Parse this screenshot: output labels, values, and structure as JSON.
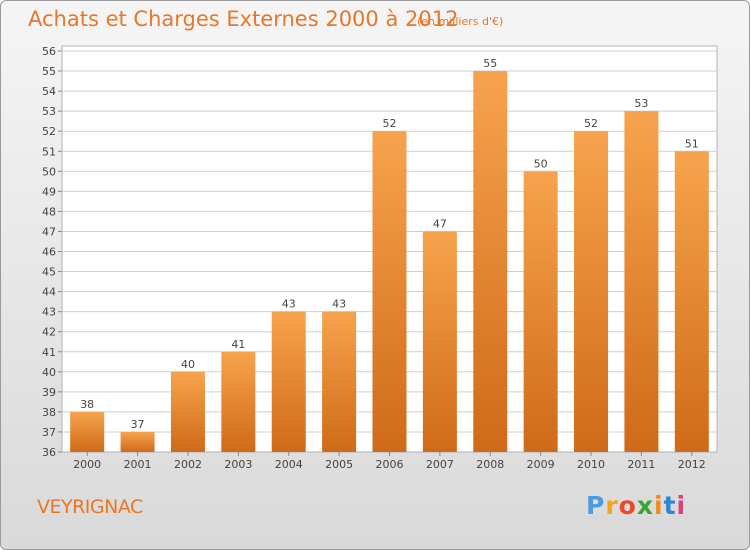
{
  "title": "Achats et Charges Externes 2000 à 2012",
  "subtitle": "(en milliers d'€)",
  "location": "VEYRIGNAC",
  "brand": [
    "P",
    "r",
    "o",
    "x",
    "i",
    "t",
    "i"
  ],
  "colors": {
    "bar_top": "#f7a34d",
    "bar_bottom": "#cf6a18",
    "title": "#e8772a",
    "grid": "#cfcfcf"
  },
  "chart_data": {
    "type": "bar",
    "categories": [
      "2000",
      "2001",
      "2002",
      "2003",
      "2004",
      "2005",
      "2006",
      "2007",
      "2008",
      "2009",
      "2010",
      "2011",
      "2012"
    ],
    "values": [
      38,
      37,
      40,
      41,
      43,
      43,
      52,
      47,
      55,
      50,
      52,
      53,
      51
    ],
    "ylim": [
      36,
      56
    ],
    "yticks": [
      36,
      37,
      38,
      39,
      40,
      41,
      42,
      43,
      44,
      45,
      46,
      47,
      48,
      49,
      50,
      51,
      52,
      53,
      54,
      55,
      56
    ],
    "grid": true
  }
}
